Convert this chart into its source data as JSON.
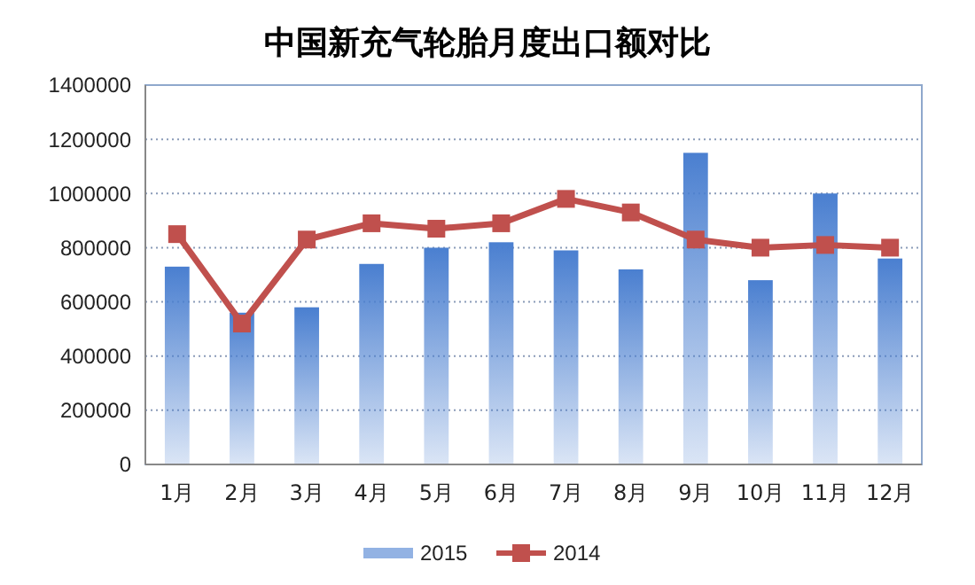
{
  "chart_data": {
    "type": "bar",
    "title": "中国新充气轮胎月度出口额对比",
    "categories": [
      "1月",
      "2月",
      "3月",
      "4月",
      "5月",
      "6月",
      "7月",
      "8月",
      "9月",
      "10月",
      "11月",
      "12月"
    ],
    "series": [
      {
        "name": "2015",
        "color": "#4a7fd0",
        "values": [
          730000,
          560000,
          580000,
          740000,
          800000,
          820000,
          790000,
          720000,
          1150000,
          680000,
          1000000,
          760000
        ]
      },
      {
        "name": "2014",
        "type": "line",
        "color": "#c0504d",
        "marker": "square",
        "values": [
          850000,
          520000,
          830000,
          890000,
          870000,
          890000,
          980000,
          930000,
          830000,
          800000,
          810000,
          800000
        ]
      }
    ],
    "ylim": [
      0,
      1400000
    ],
    "yticks": [
      0,
      200000,
      400000,
      600000,
      800000,
      1000000,
      1200000,
      1400000
    ],
    "grid": "y",
    "legend": "bottom"
  }
}
